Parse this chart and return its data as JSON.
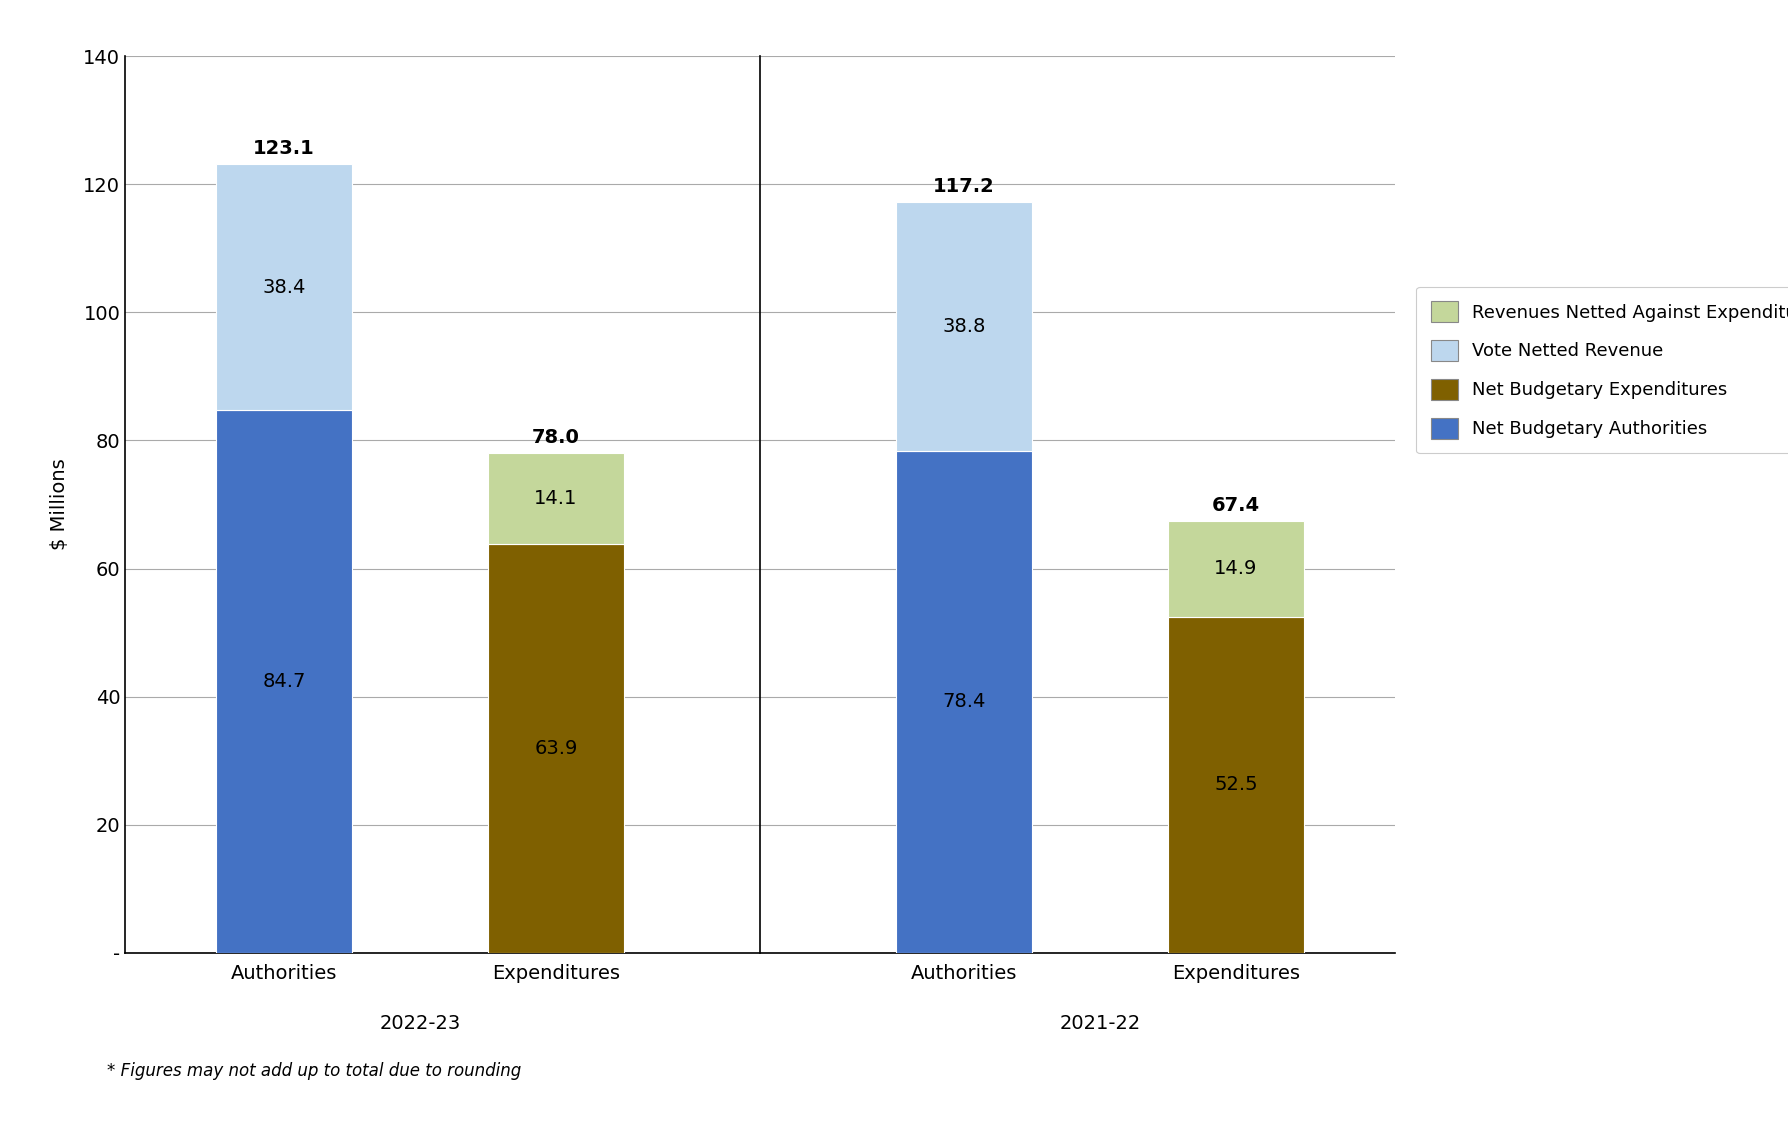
{
  "bars": [
    {
      "label": "Authorities",
      "group": "2022-23",
      "segments": [
        {
          "value": 84.7,
          "color": "#4472C4",
          "legend": "Net Budgetary Authorities"
        },
        {
          "value": 38.4,
          "color": "#BDD7EE",
          "legend": "Vote Netted Revenue"
        }
      ],
      "total": 123.1
    },
    {
      "label": "Expenditures",
      "group": "2022-23",
      "segments": [
        {
          "value": 63.9,
          "color": "#7F6000",
          "legend": "Net Budgetary Expenditures"
        },
        {
          "value": 14.1,
          "color": "#C4D79B",
          "legend": "Revenues Netted Against Expenditures"
        }
      ],
      "total": 78.0
    },
    {
      "label": "Authorities",
      "group": "2021-22",
      "segments": [
        {
          "value": 78.4,
          "color": "#4472C4",
          "legend": "Net Budgetary Authorities"
        },
        {
          "value": 38.8,
          "color": "#BDD7EE",
          "legend": "Vote Netted Revenue"
        }
      ],
      "total": 117.2
    },
    {
      "label": "Expenditures",
      "group": "2021-22",
      "segments": [
        {
          "value": 52.5,
          "color": "#7F6000",
          "legend": "Net Budgetary Expenditures"
        },
        {
          "value": 14.9,
          "color": "#C4D79B",
          "legend": "Revenues Netted Against Expenditures"
        }
      ],
      "total": 67.4
    }
  ],
  "legend_items": [
    {
      "label": "Revenues Netted Against Expenditures",
      "color": "#C4D79B"
    },
    {
      "label": "Vote Netted Revenue",
      "color": "#BDD7EE"
    },
    {
      "label": "Net Budgetary Expenditures",
      "color": "#7F6000"
    },
    {
      "label": "Net Budgetary Authorities",
      "color": "#4472C4"
    }
  ],
  "ylabel": "$ Millions",
  "ylim": [
    0,
    140
  ],
  "yticks": [
    0,
    20,
    40,
    60,
    80,
    100,
    120,
    140
  ],
  "ytick_labels": [
    "-",
    "20",
    "40",
    "60",
    "80",
    "100",
    "120",
    "140"
  ],
  "groups": [
    "2022-23",
    "2021-22"
  ],
  "footnote": "* Figures may not add up to total due to rounding",
  "background_color": "#FFFFFF",
  "bar_width": 0.6
}
